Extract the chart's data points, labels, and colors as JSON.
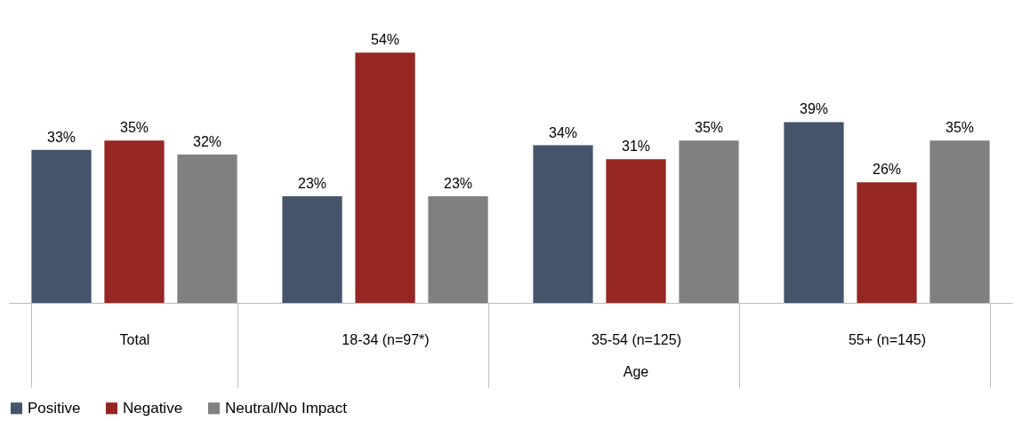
{
  "chart_data": {
    "type": "bar",
    "categories": [
      "Total",
      "18-34 (n=97*)",
      "35-54 (n=125)",
      "55+ (n=145)"
    ],
    "series": [
      {
        "name": "Positive",
        "color": "#44546a",
        "values": [
          33,
          23,
          34,
          39
        ],
        "value_labels": [
          "33%",
          "23%",
          "34%",
          "39%"
        ]
      },
      {
        "name": "Negative",
        "color": "#962622",
        "values": [
          35,
          54,
          31,
          26
        ],
        "value_labels": [
          "35%",
          "54%",
          "31%",
          "26%"
        ]
      },
      {
        "name": "Neutral/No Impact",
        "color": "#808080",
        "values": [
          32,
          23,
          35,
          35
        ],
        "value_labels": [
          "32%",
          "23%",
          "35%",
          "35%"
        ]
      }
    ],
    "annotations": [
      "Age"
    ],
    "legend": "bottom"
  }
}
